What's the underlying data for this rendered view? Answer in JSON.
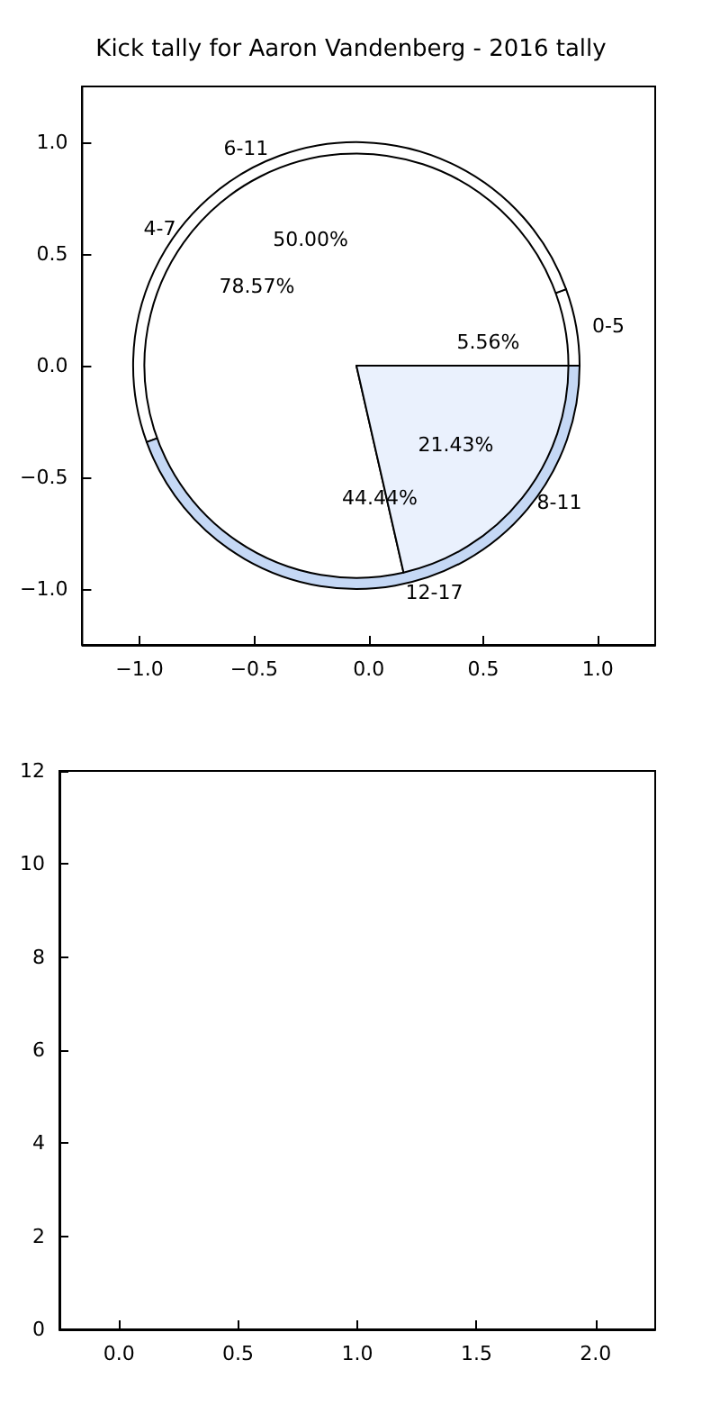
{
  "chart_data": [
    {
      "type": "scatter",
      "title": "Kick tally for Aaron Vandenberg - 2016 tally",
      "xlim": [
        -1.25,
        1.25
      ],
      "ylim": [
        -1.25,
        1.25
      ],
      "xticks": [
        {
          "value": -1,
          "label": "−1.0"
        },
        {
          "value": -0.5,
          "label": "−0.5"
        },
        {
          "value": 0,
          "label": "0.0"
        },
        {
          "value": 0.5,
          "label": "0.5"
        },
        {
          "value": 1,
          "label": "1.0"
        }
      ],
      "yticks": [
        {
          "value": -1,
          "label": "−1.0"
        },
        {
          "value": -0.5,
          "label": "−0.5"
        },
        {
          "value": 0,
          "label": "0.0"
        },
        {
          "value": 0.5,
          "label": "0.5"
        },
        {
          "value": 1,
          "label": "1.0"
        }
      ]
    },
    {
      "type": "pie",
      "categories": [
        "0-5",
        "6-11",
        "12-17"
      ],
      "values": [
        5.56,
        50.0,
        44.44
      ],
      "value_labels": [
        "5.56%",
        "50.00%",
        "44.44%"
      ],
      "colors": [
        "#ffffff",
        "#ffffff",
        "#c5d8f5"
      ]
    },
    {
      "type": "pie",
      "categories": [
        "4-7",
        "8-11"
      ],
      "values": [
        78.57,
        21.43
      ],
      "value_labels": [
        "78.57%",
        "21.43%"
      ],
      "colors": [
        "#ffffff",
        "#eaf1fd"
      ]
    },
    {
      "type": "scatter",
      "xlim": [
        -0.25,
        2.25
      ],
      "ylim": [
        0,
        12
      ],
      "xticks": [
        {
          "value": 0,
          "label": "0.0"
        },
        {
          "value": 0.5,
          "label": "0.5"
        },
        {
          "value": 1,
          "label": "1.0"
        },
        {
          "value": 1.5,
          "label": "1.5"
        },
        {
          "value": 2,
          "label": "2.0"
        }
      ],
      "yticks": [
        0,
        2,
        4,
        6,
        8,
        10,
        12
      ]
    }
  ]
}
